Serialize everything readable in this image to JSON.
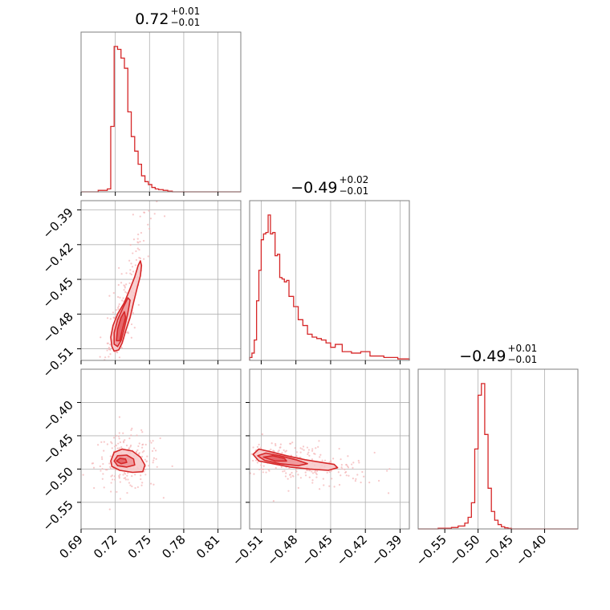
{
  "chart_data": {
    "type": "corner",
    "color": "#d62728",
    "light_color": "#f4b5b7",
    "grid": true,
    "parameters": [
      {
        "median": "0.72",
        "plus": "+0.01",
        "minus": "−0.01",
        "lim": [
          0.69,
          0.83
        ],
        "ticks": [
          0.69,
          0.72,
          0.75,
          0.78,
          0.81
        ],
        "tick_labels": [
          "0.69",
          "0.72",
          "0.75",
          "0.78",
          "0.81"
        ]
      },
      {
        "median": "−0.49",
        "plus": "+0.02",
        "minus": "−0.01",
        "lim": [
          -0.52,
          -0.382
        ],
        "ticks": [
          -0.51,
          -0.48,
          -0.45,
          -0.42,
          -0.39
        ],
        "tick_labels": [
          "−0.51",
          "−0.48",
          "−0.45",
          "−0.42",
          "−0.39"
        ]
      },
      {
        "median": "−0.49",
        "plus": "+0.01",
        "minus": "−0.01",
        "lim": [
          -0.59,
          -0.35
        ],
        "ticks": [
          -0.55,
          -0.5,
          -0.45,
          -0.4
        ],
        "tick_labels": [
          "−0.55",
          "−0.50",
          "−0.45",
          "−0.40"
        ]
      }
    ],
    "histograms": [
      {
        "param": 0,
        "edges": [
          0.705,
          0.713,
          0.716,
          0.719,
          0.722,
          0.725,
          0.728,
          0.731,
          0.734,
          0.737,
          0.74,
          0.743,
          0.746,
          0.749,
          0.752,
          0.755,
          0.758,
          0.762,
          0.766,
          0.77
        ],
        "heights": [
          0.01,
          0.02,
          0.45,
          1.0,
          0.98,
          0.92,
          0.85,
          0.55,
          0.38,
          0.28,
          0.19,
          0.11,
          0.07,
          0.05,
          0.03,
          0.02,
          0.015,
          0.01,
          0.005
        ]
      },
      {
        "param": 1,
        "edges": [
          -0.52,
          -0.518,
          -0.516,
          -0.514,
          -0.512,
          -0.51,
          -0.508,
          -0.506,
          -0.504,
          -0.502,
          -0.5,
          -0.498,
          -0.496,
          -0.494,
          -0.492,
          -0.49,
          -0.488,
          -0.486,
          -0.484,
          -0.482,
          -0.48,
          -0.478,
          -0.476,
          -0.474,
          -0.472,
          -0.47,
          -0.466,
          -0.462,
          -0.458,
          -0.454,
          -0.45,
          -0.446,
          -0.44,
          -0.432,
          -0.424,
          -0.416,
          -0.404,
          -0.392,
          -0.382
        ],
        "heights": [
          0.02,
          0.05,
          0.14,
          0.41,
          0.62,
          0.83,
          0.87,
          0.88,
          1.0,
          0.87,
          0.88,
          0.72,
          0.73,
          0.57,
          0.56,
          0.54,
          0.55,
          0.44,
          0.44,
          0.37,
          0.37,
          0.28,
          0.28,
          0.24,
          0.24,
          0.18,
          0.16,
          0.15,
          0.14,
          0.12,
          0.09,
          0.11,
          0.06,
          0.05,
          0.06,
          0.03,
          0.02,
          0.01
        ]
      },
      {
        "param": 2,
        "edges": [
          -0.56,
          -0.54,
          -0.53,
          -0.52,
          -0.515,
          -0.51,
          -0.505,
          -0.5,
          -0.495,
          -0.49,
          -0.485,
          -0.48,
          -0.475,
          -0.47,
          -0.465,
          -0.46,
          -0.455,
          -0.45
        ],
        "heights": [
          0.005,
          0.01,
          0.02,
          0.04,
          0.08,
          0.18,
          0.55,
          0.92,
          1.0,
          0.65,
          0.28,
          0.12,
          0.06,
          0.03,
          0.015,
          0.008,
          0.004
        ]
      }
    ],
    "pairs": [
      {
        "x_param": 0,
        "y_param": 1,
        "contours": [
          [
            [
              0.717,
              -0.508
            ],
            [
              0.716,
              -0.5
            ],
            [
              0.718,
              -0.49
            ],
            [
              0.722,
              -0.48
            ],
            [
              0.728,
              -0.47
            ],
            [
              0.733,
              -0.458
            ],
            [
              0.737,
              -0.448
            ],
            [
              0.74,
              -0.438
            ],
            [
              0.742,
              -0.434
            ],
            [
              0.743,
              -0.438
            ],
            [
              0.742,
              -0.447
            ],
            [
              0.739,
              -0.458
            ],
            [
              0.736,
              -0.47
            ],
            [
              0.733,
              -0.483
            ],
            [
              0.729,
              -0.495
            ],
            [
              0.726,
              -0.505
            ],
            [
              0.723,
              -0.511
            ],
            [
              0.719,
              -0.512
            ]
          ],
          [
            [
              0.719,
              -0.506
            ],
            [
              0.719,
              -0.496
            ],
            [
              0.722,
              -0.485
            ],
            [
              0.727,
              -0.474
            ],
            [
              0.731,
              -0.466
            ],
            [
              0.733,
              -0.468
            ],
            [
              0.731,
              -0.479
            ],
            [
              0.728,
              -0.492
            ],
            [
              0.725,
              -0.503
            ],
            [
              0.722,
              -0.508
            ]
          ],
          [
            [
              0.721,
              -0.503
            ],
            [
              0.722,
              -0.493
            ],
            [
              0.725,
              -0.483
            ],
            [
              0.728,
              -0.478
            ],
            [
              0.729,
              -0.483
            ],
            [
              0.726,
              -0.494
            ],
            [
              0.724,
              -0.503
            ]
          ]
        ],
        "center": [
          0.724,
          -0.49
        ],
        "spread": [
          0.012,
          0.018
        ],
        "slope": 3.6,
        "points": 220
      },
      {
        "x_param": 0,
        "y_param": 2,
        "contours": [
          [
            [
              0.716,
              -0.488
            ],
            [
              0.719,
              -0.475
            ],
            [
              0.726,
              -0.47
            ],
            [
              0.735,
              -0.473
            ],
            [
              0.742,
              -0.482
            ],
            [
              0.746,
              -0.494
            ],
            [
              0.744,
              -0.504
            ],
            [
              0.735,
              -0.505
            ],
            [
              0.724,
              -0.502
            ],
            [
              0.717,
              -0.496
            ]
          ],
          [
            [
              0.719,
              -0.488
            ],
            [
              0.722,
              -0.48
            ],
            [
              0.73,
              -0.479
            ],
            [
              0.736,
              -0.485
            ],
            [
              0.737,
              -0.494
            ],
            [
              0.73,
              -0.497
            ],
            [
              0.722,
              -0.495
            ]
          ],
          [
            [
              0.721,
              -0.488
            ],
            [
              0.724,
              -0.484
            ],
            [
              0.729,
              -0.485
            ],
            [
              0.73,
              -0.49
            ],
            [
              0.725,
              -0.492
            ]
          ]
        ],
        "center": [
          0.73,
          -0.49
        ],
        "spread": [
          0.012,
          0.016
        ],
        "slope": 0,
        "points": 220
      },
      {
        "x_param": 1,
        "y_param": 2,
        "contours": [
          [
            [
              -0.517,
              -0.478
            ],
            [
              -0.512,
              -0.47
            ],
            [
              -0.502,
              -0.474
            ],
            [
              -0.488,
              -0.48
            ],
            [
              -0.472,
              -0.486
            ],
            [
              -0.458,
              -0.49
            ],
            [
              -0.447,
              -0.493
            ],
            [
              -0.444,
              -0.498
            ],
            [
              -0.452,
              -0.502
            ],
            [
              -0.468,
              -0.5
            ],
            [
              -0.485,
              -0.497
            ],
            [
              -0.5,
              -0.492
            ],
            [
              -0.512,
              -0.488
            ]
          ],
          [
            [
              -0.513,
              -0.48
            ],
            [
              -0.506,
              -0.476
            ],
            [
              -0.494,
              -0.48
            ],
            [
              -0.48,
              -0.486
            ],
            [
              -0.47,
              -0.492
            ],
            [
              -0.478,
              -0.495
            ],
            [
              -0.494,
              -0.492
            ],
            [
              -0.507,
              -0.487
            ]
          ],
          [
            [
              -0.508,
              -0.482
            ],
            [
              -0.5,
              -0.48
            ],
            [
              -0.49,
              -0.484
            ],
            [
              -0.488,
              -0.488
            ],
            [
              -0.498,
              -0.488
            ]
          ]
        ],
        "center": [
          -0.48,
          -0.49
        ],
        "spread": [
          0.028,
          0.012
        ],
        "slope": -0.25,
        "points": 260
      }
    ]
  }
}
